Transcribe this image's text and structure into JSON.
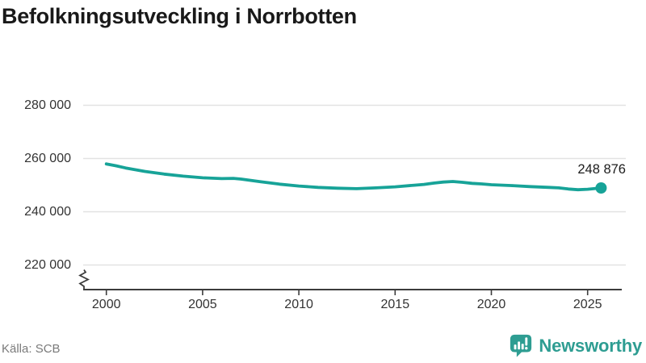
{
  "chart_data": {
    "type": "line",
    "title": "Befolkningsutveckling i Norrbotten",
    "xlabel": "",
    "ylabel": "",
    "x_tick_labels": [
      "2000",
      "2005",
      "2010",
      "2015",
      "2020",
      "2025"
    ],
    "y_tick_labels": [
      "280 000",
      "260 000",
      "240 000",
      "220 000"
    ],
    "y_tick_values": [
      280000,
      260000,
      240000,
      220000
    ],
    "ylim_shown": [
      220000,
      280000
    ],
    "axis_break": true,
    "grid": "horizontal",
    "line_color": "#17a398",
    "x": [
      2000,
      2000.5,
      2001,
      2002,
      2003,
      2004,
      2005,
      2006,
      2006.6,
      2007,
      2008,
      2009,
      2010,
      2011,
      2012,
      2013,
      2014,
      2015,
      2016,
      2016.5,
      2017,
      2017.5,
      2018,
      2018.5,
      2019,
      2019.5,
      2020,
      2021,
      2022,
      2023,
      2023.5,
      2024,
      2024.5,
      2025,
      2025.7
    ],
    "values": [
      257900,
      257200,
      256400,
      255100,
      254100,
      253300,
      252700,
      252400,
      252500,
      252200,
      251200,
      250300,
      249600,
      249100,
      248800,
      248600,
      248900,
      249300,
      249900,
      250200,
      250700,
      251100,
      251300,
      251000,
      250600,
      250400,
      250100,
      249800,
      249400,
      249100,
      248900,
      248500,
      248200,
      248400,
      248876
    ],
    "annotation": {
      "text": "248 876",
      "value": 248876,
      "x": 2025.7
    }
  },
  "footer": {
    "source": "Källa: SCB",
    "brand": "Newsworthy"
  },
  "colors": {
    "accent": "#17a398",
    "brand_teal": "#2e9d92",
    "grid": "#e2e2e2",
    "axis": "#3c3c3c",
    "text_dark": "#1a1a1a",
    "text_muted": "#7a7a7a"
  }
}
